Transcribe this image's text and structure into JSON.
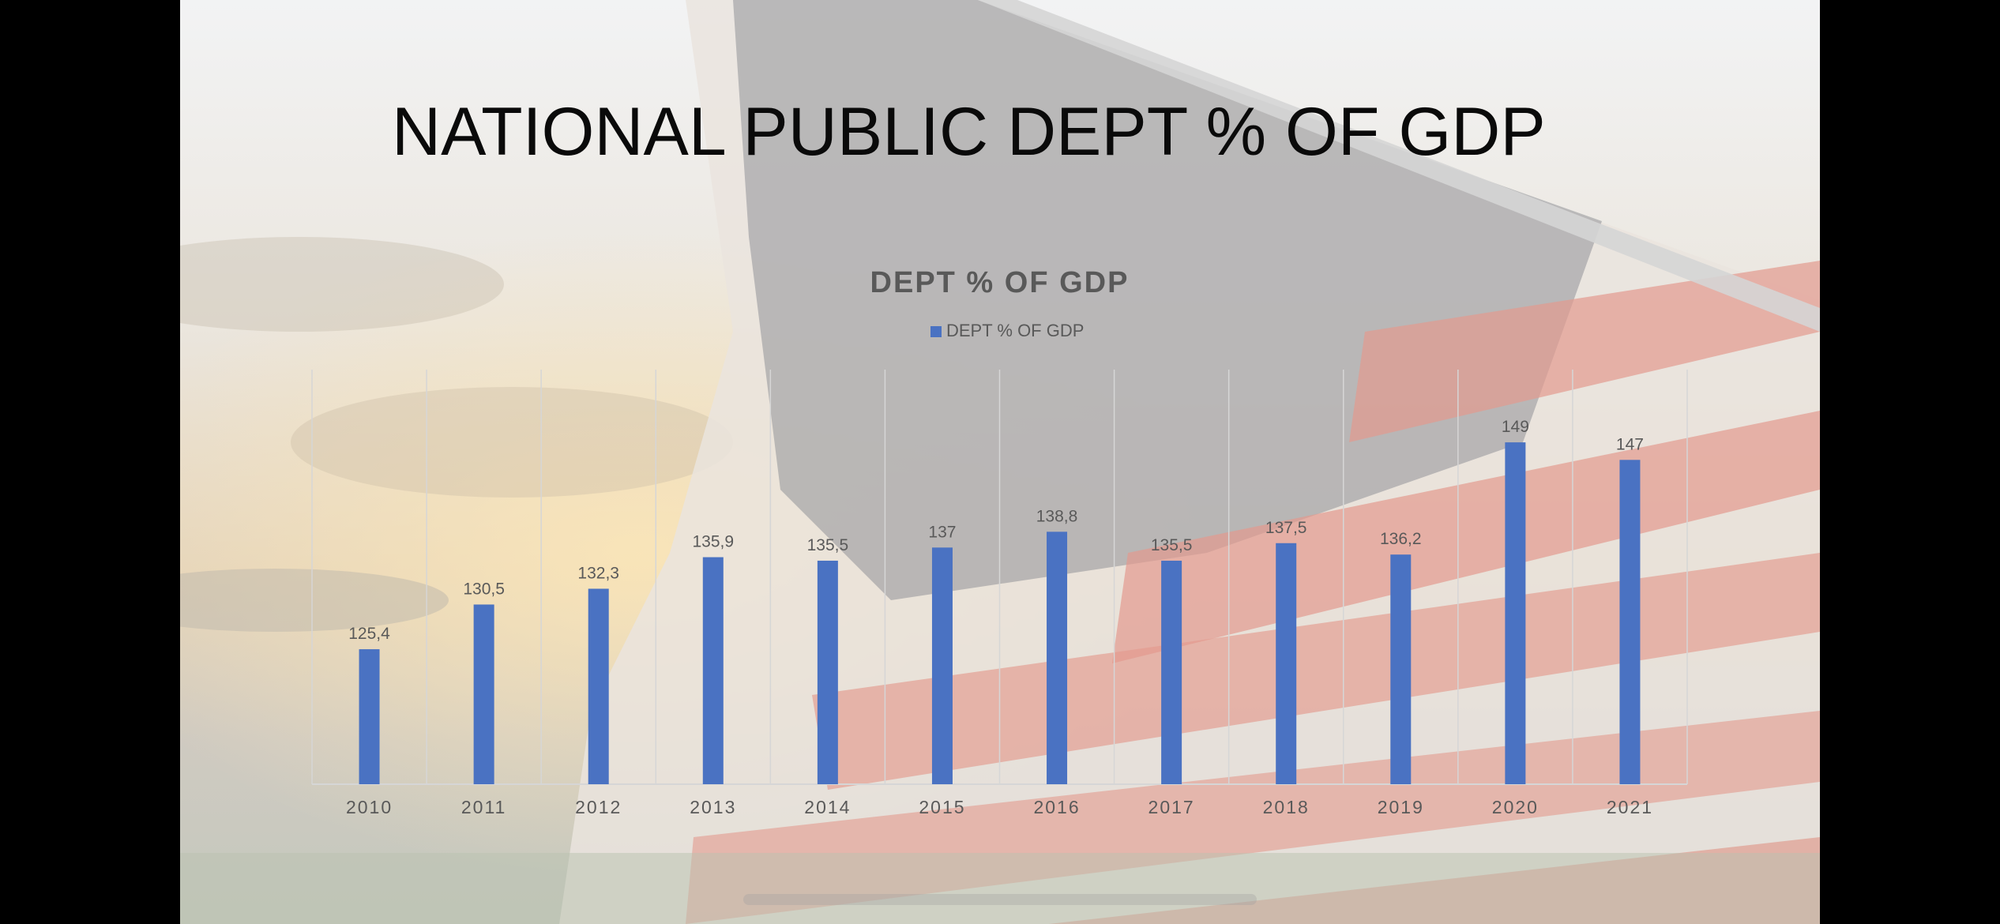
{
  "slide": {
    "title": "NATIONAL PUBLIC DEPT % OF GDP"
  },
  "chart_data": {
    "type": "bar",
    "title": "DEPT % OF GDP",
    "legend": [
      "DEPT % OF GDP"
    ],
    "legend_position": "top",
    "categories": [
      "2010",
      "2011",
      "2012",
      "2013",
      "2014",
      "2015",
      "2016",
      "2017",
      "2018",
      "2019",
      "2020",
      "2021"
    ],
    "series": [
      {
        "name": "DEPT % OF GDP",
        "values": [
          125.4,
          130.5,
          132.3,
          135.9,
          135.5,
          137,
          138.8,
          135.5,
          137.5,
          136.2,
          149,
          147
        ],
        "labels": [
          "125,4",
          "130,5",
          "132,3",
          "135,9",
          "135,5",
          "137",
          "138,8",
          "135,5",
          "137,5",
          "136,2",
          "149",
          "147"
        ],
        "color": "#4a72c2"
      }
    ],
    "xlabel": "",
    "ylabel": "",
    "y_axis_visible": false,
    "grid": "vertical",
    "colors": {
      "bar": "#4a72c2",
      "title": "#595959",
      "labels": "#595959",
      "grid": "#d6d6d6"
    }
  }
}
